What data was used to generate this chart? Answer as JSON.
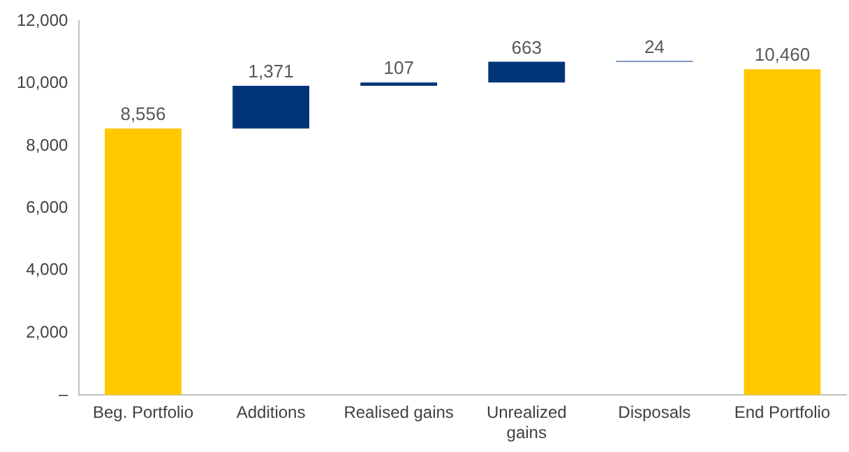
{
  "chart_data": {
    "type": "bar",
    "categories": [
      "Beg. Portfolio",
      "Additions",
      "Realised gains",
      "Unrealized gains",
      "Disposals",
      "End Portfolio"
    ],
    "values": [
      8556,
      1371,
      107,
      663,
      24,
      10460
    ],
    "base": [
      0,
      8556,
      9927,
      10034,
      10697,
      0
    ],
    "colors": [
      "#ffc800",
      "#003478",
      "#003478",
      "#003478",
      "#003478",
      "#ffc800"
    ],
    "value_labels": [
      "8,556",
      "1,371",
      "107",
      "663",
      "24",
      "10,460"
    ],
    "ylim": [
      0,
      12000
    ],
    "yticks": [
      {
        "value": 0,
        "label": "–"
      },
      {
        "value": 2000,
        "label": "2,000"
      },
      {
        "value": 4000,
        "label": "4,000"
      },
      {
        "value": 6000,
        "label": "6,000"
      },
      {
        "value": 8000,
        "label": "8,000"
      },
      {
        "value": 10000,
        "label": "10,000"
      },
      {
        "value": 12000,
        "label": "12,000"
      }
    ],
    "grid": false,
    "legend": false
  }
}
